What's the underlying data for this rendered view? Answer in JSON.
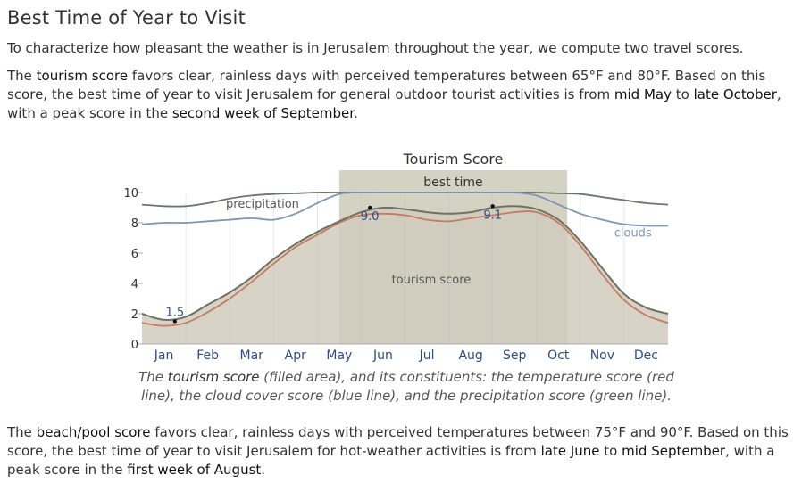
{
  "heading": "Best Time of Year to Visit",
  "intro": "To characterize how pleasant the weather is in Jerusalem throughout the year, we compute two travel scores.",
  "tourism_para": {
    "p0": "The ",
    "term": "tourism score",
    "p1": " favors clear, rainless days with perceived temperatures between 65°F and 80°F. Based on this score, the best time of year to visit Jerusalem for general outdoor tourist activities is from ",
    "start": "mid May",
    "p2": " to ",
    "end": "late October",
    "p3": ", with a peak score in the ",
    "peak": "second week of September",
    "p4": "."
  },
  "caption": {
    "c0": "The ",
    "term": "tourism score",
    "c1": " (filled area), and its constituents: the temperature score (red line), the cloud cover score (blue line), and the precipitation score (green line)."
  },
  "beach_para": {
    "p0": "The ",
    "term": "beach/pool score",
    "p1": " favors clear, rainless days with perceived temperatures between 75°F and 90°F. Based on this score, the best time of year to visit Jerusalem for hot-weather activities is from ",
    "start": "late June",
    "p2": " to ",
    "end": "mid September",
    "p3": ", with a peak score in the ",
    "peak": "first week of August",
    "p4": "."
  },
  "colors": {
    "fill": "#d0cdbd",
    "tourism_line": "#6f7261",
    "temperature": "#c77a64",
    "clouds": "#7e96b5",
    "precipitation": "#6c7665",
    "best_band": "#c5c3ae",
    "grid": "#bdbdbd",
    "month_label": "#2a4d8a"
  },
  "chart_data": {
    "type": "area",
    "title": "Tourism Score",
    "ylim": [
      0,
      10
    ],
    "yticks": [
      "0",
      "2",
      "4",
      "6",
      "8",
      "10"
    ],
    "months": [
      "Jan",
      "Feb",
      "Mar",
      "Apr",
      "May",
      "Jun",
      "Jul",
      "Aug",
      "Sep",
      "Oct",
      "Nov",
      "Dec"
    ],
    "best_time": {
      "label": "best time",
      "start_month": 4.5,
      "end_month": 9.7
    },
    "x": [
      0,
      0.5,
      1,
      1.5,
      2,
      2.5,
      3,
      3.5,
      4,
      4.5,
      5,
      5.5,
      6,
      6.5,
      7,
      7.5,
      8,
      8.5,
      9,
      9.5,
      10,
      10.5,
      11,
      11.5,
      12
    ],
    "series": [
      {
        "name": "tourism score",
        "values": [
          2.0,
          1.6,
          1.8,
          2.6,
          3.4,
          4.4,
          5.6,
          6.6,
          7.4,
          8.1,
          8.7,
          9.0,
          8.9,
          8.7,
          8.6,
          8.7,
          9.0,
          9.1,
          8.9,
          8.2,
          6.8,
          5.0,
          3.3,
          2.4,
          2.0
        ]
      },
      {
        "name": "temperature score",
        "values": [
          1.4,
          1.2,
          1.4,
          2.1,
          3.0,
          4.1,
          5.3,
          6.4,
          7.2,
          8.0,
          8.5,
          8.6,
          8.5,
          8.2,
          8.1,
          8.3,
          8.5,
          8.7,
          8.7,
          8.0,
          6.5,
          4.6,
          2.9,
          1.9,
          1.4
        ]
      },
      {
        "name": "clouds",
        "values": [
          7.9,
          8.0,
          8.0,
          8.1,
          8.2,
          8.3,
          8.2,
          8.6,
          9.3,
          9.9,
          10.0,
          10.0,
          10.0,
          10.0,
          10.0,
          10.0,
          10.0,
          10.0,
          9.8,
          9.2,
          8.6,
          8.2,
          7.9,
          7.8,
          7.8
        ]
      },
      {
        "name": "precipitation",
        "values": [
          9.2,
          9.1,
          9.1,
          9.3,
          9.6,
          9.8,
          9.9,
          9.95,
          10.0,
          10.0,
          10.0,
          10.0,
          10.0,
          10.0,
          10.0,
          10.0,
          10.0,
          10.0,
          10.0,
          9.95,
          9.9,
          9.7,
          9.5,
          9.3,
          9.2
        ]
      }
    ],
    "annotations": [
      {
        "text": "precipitation",
        "x": 2.75,
        "y": 9.0
      },
      {
        "text": "clouds",
        "x": 11.2,
        "y": 7.1
      },
      {
        "text": "tourism score",
        "x": 6.6,
        "y": 4.0
      },
      {
        "text": "1.5",
        "x": 0.75,
        "y": 1.5,
        "point": true
      },
      {
        "text": "9.0",
        "x": 5.2,
        "y": 9.0,
        "point": true
      },
      {
        "text": "9.1",
        "x": 8.0,
        "y": 9.1,
        "point": true
      }
    ]
  }
}
